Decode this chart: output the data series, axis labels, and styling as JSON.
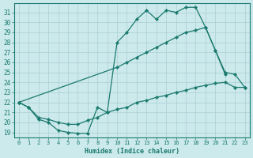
{
  "xlabel": "Humidex (Indice chaleur)",
  "x_ticks": [
    0,
    1,
    2,
    3,
    4,
    5,
    6,
    7,
    8,
    9,
    10,
    11,
    12,
    13,
    14,
    15,
    16,
    17,
    18,
    19,
    20,
    21,
    22,
    23
  ],
  "y_ticks": [
    19,
    20,
    21,
    22,
    23,
    24,
    25,
    26,
    27,
    28,
    29,
    30,
    31
  ],
  "xlim": [
    -0.5,
    23.5
  ],
  "ylim": [
    18.5,
    31.9
  ],
  "bg_color": "#cce9ec",
  "line_color": "#1a7a6e",
  "grid_color": "#aacfd4",
  "line_series": [
    {
      "x": [
        0,
        1,
        2,
        3,
        4,
        5,
        6,
        7,
        8,
        9,
        10,
        11,
        12,
        13,
        14,
        15,
        16,
        17,
        18,
        19,
        20,
        21
      ],
      "y": [
        22.0,
        21.5,
        20.3,
        20.0,
        19.2,
        19.0,
        18.9,
        18.9,
        21.5,
        21.0,
        28.0,
        29.0,
        30.3,
        31.2,
        30.3,
        31.2,
        31.0,
        31.5,
        31.5,
        29.5,
        27.2,
        24.8
      ]
    },
    {
      "x": [
        0,
        10,
        11,
        12,
        13,
        14,
        15,
        16,
        17,
        18,
        19,
        20,
        21,
        22,
        23
      ],
      "y": [
        22.0,
        25.5,
        26.0,
        26.5,
        27.0,
        27.5,
        28.0,
        28.5,
        29.0,
        29.2,
        29.5,
        27.2,
        25.0,
        24.8,
        23.5
      ]
    },
    {
      "x": [
        0,
        1,
        2,
        3,
        4,
        5,
        6,
        7,
        8,
        9,
        10,
        11,
        12,
        13,
        14,
        15,
        16,
        17,
        18,
        19,
        20,
        21,
        22,
        23
      ],
      "y": [
        22.0,
        21.5,
        20.5,
        20.3,
        20.0,
        19.8,
        19.8,
        20.2,
        20.5,
        21.0,
        21.3,
        21.5,
        22.0,
        22.2,
        22.5,
        22.7,
        23.0,
        23.2,
        23.5,
        23.7,
        23.9,
        24.0,
        23.5,
        23.5
      ]
    }
  ]
}
